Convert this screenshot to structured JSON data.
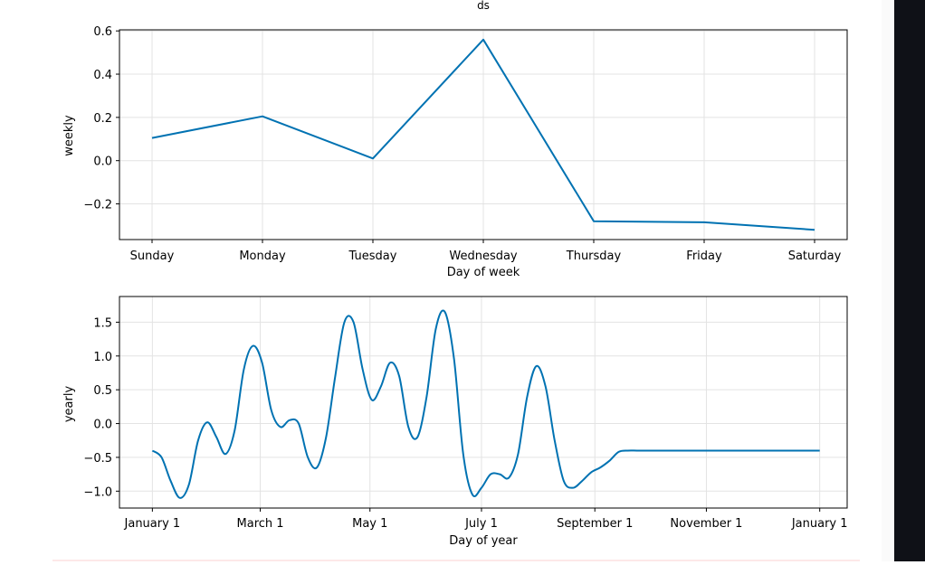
{
  "colors": {
    "line": "#0072b2",
    "grid": "#e3e3e3",
    "axis": "#000000",
    "sidebar": "#0f1117"
  },
  "chart_data": [
    {
      "type": "line",
      "title": "ds",
      "xlabel": "Day of week",
      "ylabel": "weekly",
      "categories": [
        "Sunday",
        "Monday",
        "Tuesday",
        "Wednesday",
        "Thursday",
        "Friday",
        "Saturday"
      ],
      "series": [
        {
          "values": [
            0.105,
            0.205,
            0.01,
            0.56,
            -0.28,
            -0.285,
            -0.32
          ]
        }
      ],
      "ylim": [
        -0.365,
        0.605
      ],
      "yticks": [
        -0.2,
        0.0,
        0.2,
        0.4,
        0.6
      ],
      "ytick_labels": [
        "−0.2",
        "0.0",
        "0.2",
        "0.4",
        "0.6"
      ],
      "grid": true
    },
    {
      "type": "line",
      "xlabel": "Day of year",
      "ylabel": "yearly",
      "xticks": [
        0,
        59,
        119,
        180,
        242,
        303,
        365
      ],
      "xtick_labels": [
        "January 1",
        "March 1",
        "May 1",
        "July 1",
        "September 1",
        "November 1",
        "January 1"
      ],
      "x": [
        0,
        5,
        10,
        15,
        20,
        25,
        30,
        35,
        40,
        45,
        50,
        55,
        60,
        65,
        70,
        75,
        80,
        85,
        90,
        95,
        100,
        105,
        110,
        115,
        120,
        125,
        130,
        135,
        140,
        145,
        150,
        155,
        160,
        165,
        170,
        175,
        180,
        185,
        190,
        195,
        200,
        205,
        210,
        215,
        220,
        225,
        230,
        235,
        240,
        245,
        250,
        255,
        260,
        265,
        270,
        275,
        280,
        285,
        290,
        295,
        300,
        305,
        310,
        315,
        320,
        325,
        330,
        335,
        340,
        345,
        350,
        355,
        360,
        365
      ],
      "series": [
        {
          "values": [
            -0.4,
            -0.5,
            -0.85,
            -1.1,
            -0.9,
            -0.25,
            0.02,
            -0.2,
            -0.45,
            -0.1,
            0.8,
            1.15,
            0.9,
            0.2,
            -0.05,
            0.05,
            0.0,
            -0.5,
            -0.65,
            -0.2,
            0.7,
            1.5,
            1.5,
            0.8,
            0.35,
            0.55,
            0.9,
            0.7,
            -0.05,
            -0.2,
            0.4,
            1.4,
            1.65,
            0.95,
            -0.45,
            -1.05,
            -0.95,
            -0.75,
            -0.75,
            -0.8,
            -0.45,
            0.4,
            0.85,
            0.55,
            -0.25,
            -0.85,
            -0.95,
            -0.85,
            -0.72,
            -0.65,
            -0.55,
            -0.42,
            -0.4,
            -0.4,
            -0.4,
            -0.4,
            -0.4,
            -0.4,
            -0.4,
            -0.4,
            -0.4,
            -0.4,
            -0.4,
            -0.4,
            -0.4,
            -0.4,
            -0.4,
            -0.4,
            -0.4,
            -0.4,
            -0.4,
            -0.4,
            -0.4,
            -0.4
          ]
        }
      ],
      "xlim": [
        -18,
        380
      ],
      "ylim": [
        -1.25,
        1.88
      ],
      "yticks": [
        -1.0,
        -0.5,
        0.0,
        0.5,
        1.0,
        1.5
      ],
      "ytick_labels": [
        "−1.0",
        "−0.5",
        "0.0",
        "0.5",
        "1.0",
        "1.5"
      ],
      "grid": true
    }
  ]
}
